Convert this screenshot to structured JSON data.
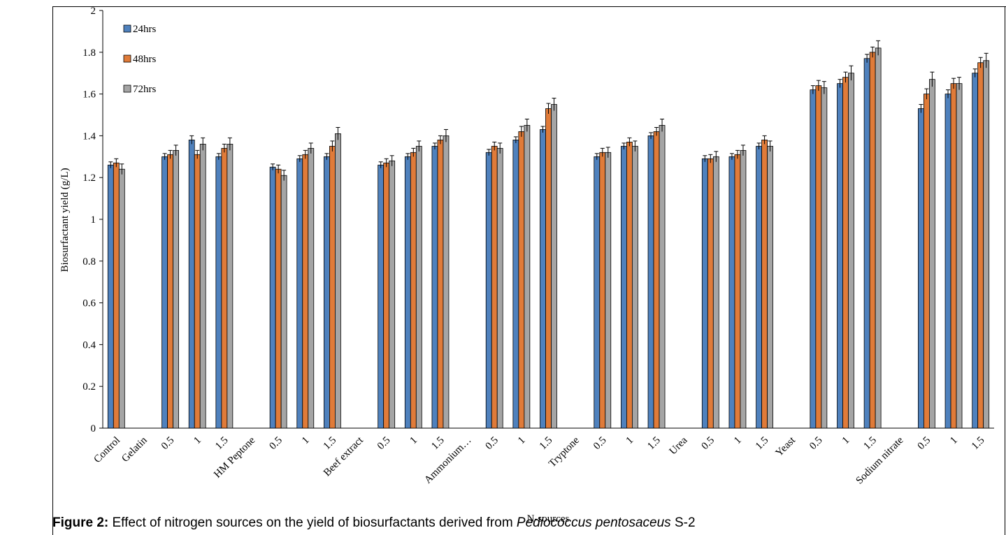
{
  "caption": {
    "label": "Figure 2:",
    "text_before": " Effect of nitrogen sources on the yield of biosurfactants derived from ",
    "species": "Pediococcus pentosaceus",
    "text_after": " S-2"
  },
  "chart_data": {
    "type": "bar",
    "xlabel": "N-sources",
    "ylabel": "Biosurfactant yield (g/L)",
    "ylim": [
      0,
      2
    ],
    "yticks": [
      "0",
      "0.2",
      "0.4",
      "0.6",
      "0.8",
      "1",
      "1.2",
      "1.4",
      "1.6",
      "1.8",
      "2"
    ],
    "legend_position": "top-left",
    "grid": false,
    "categories": [
      "Control",
      "Gelatin",
      "0.5",
      "1",
      "1.5",
      "HM Peptone",
      "0.5",
      "1",
      "1.5",
      "Beef extract",
      "0.5",
      "1",
      "1.5",
      "Ammonium…",
      "0.5",
      "1",
      "1.5",
      "Tryptone",
      "0.5",
      "1",
      "1.5",
      "Urea",
      "0.5",
      "1",
      "1.5",
      "Yeast",
      "0.5",
      "1",
      "1.5",
      "Sodium nitrate",
      "0.5",
      "1",
      "1.5"
    ],
    "series": [
      {
        "name": "24hrs",
        "color": "#4F81BD",
        "values": [
          1.26,
          null,
          1.3,
          1.38,
          1.3,
          null,
          1.25,
          1.29,
          1.3,
          null,
          1.26,
          1.3,
          1.35,
          null,
          1.32,
          1.38,
          1.43,
          null,
          1.3,
          1.35,
          1.4,
          null,
          1.29,
          1.3,
          1.35,
          null,
          1.62,
          1.65,
          1.77,
          null,
          1.53,
          1.6,
          1.7
        ],
        "errors": [
          0.015,
          null,
          0.015,
          0.02,
          0.015,
          null,
          0.015,
          0.015,
          0.015,
          null,
          0.015,
          0.015,
          0.015,
          null,
          0.015,
          0.015,
          0.015,
          null,
          0.015,
          0.015,
          0.015,
          null,
          0.015,
          0.015,
          0.015,
          null,
          0.02,
          0.02,
          0.02,
          null,
          0.02,
          0.02,
          0.02
        ]
      },
      {
        "name": "48hrs",
        "color": "#E07B39",
        "values": [
          1.27,
          null,
          1.31,
          1.31,
          1.34,
          null,
          1.24,
          1.31,
          1.35,
          null,
          1.27,
          1.32,
          1.38,
          null,
          1.35,
          1.42,
          1.53,
          null,
          1.32,
          1.37,
          1.42,
          null,
          1.29,
          1.31,
          1.38,
          null,
          1.64,
          1.68,
          1.8,
          null,
          1.6,
          1.65,
          1.75
        ],
        "errors": [
          0.02,
          null,
          0.02,
          0.02,
          0.02,
          null,
          0.02,
          0.02,
          0.025,
          null,
          0.02,
          0.02,
          0.02,
          null,
          0.02,
          0.025,
          0.025,
          null,
          0.02,
          0.02,
          0.02,
          null,
          0.02,
          0.02,
          0.02,
          null,
          0.025,
          0.025,
          0.025,
          null,
          0.025,
          0.025,
          0.025
        ]
      },
      {
        "name": "72hrs",
        "color": "#A5A5A5",
        "values": [
          1.24,
          null,
          1.33,
          1.36,
          1.36,
          null,
          1.21,
          1.34,
          1.41,
          null,
          1.28,
          1.35,
          1.4,
          null,
          1.34,
          1.45,
          1.55,
          null,
          1.32,
          1.35,
          1.45,
          null,
          1.3,
          1.33,
          1.35,
          null,
          1.63,
          1.7,
          1.82,
          null,
          1.67,
          1.65,
          1.76
        ],
        "errors": [
          0.025,
          null,
          0.025,
          0.03,
          0.03,
          null,
          0.025,
          0.025,
          0.03,
          null,
          0.025,
          0.025,
          0.03,
          null,
          0.025,
          0.03,
          0.03,
          null,
          0.025,
          0.025,
          0.03,
          null,
          0.025,
          0.025,
          0.025,
          null,
          0.03,
          0.035,
          0.035,
          null,
          0.035,
          0.03,
          0.035
        ]
      }
    ]
  }
}
